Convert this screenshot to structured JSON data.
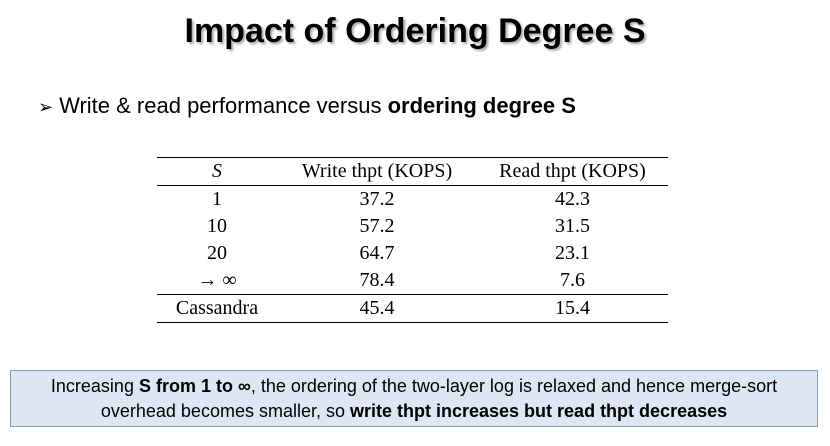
{
  "title": "Impact of Ordering Degree S",
  "bullet": {
    "marker": "➢",
    "parts": [
      "Write & read performance versus ",
      "ordering degree S"
    ]
  },
  "table": {
    "header": [
      "S",
      "Write thpt (KOPS)",
      "Read thpt (KOPS)"
    ],
    "rows": [
      [
        "1",
        "37.2",
        "42.3"
      ],
      [
        "10",
        "57.2",
        "31.5"
      ],
      [
        "20",
        "64.7",
        "23.1"
      ],
      [
        "→ ∞",
        "78.4",
        "7.6"
      ],
      [
        "Cassandra",
        "45.4",
        "15.4"
      ]
    ]
  },
  "note": {
    "parts": [
      "Increasing ",
      "S from 1 to ∞",
      ", the ordering of the two-layer log is relaxed and hence merge-sort overhead becomes smaller, so ",
      "write thpt increases but read thpt decreases"
    ]
  }
}
